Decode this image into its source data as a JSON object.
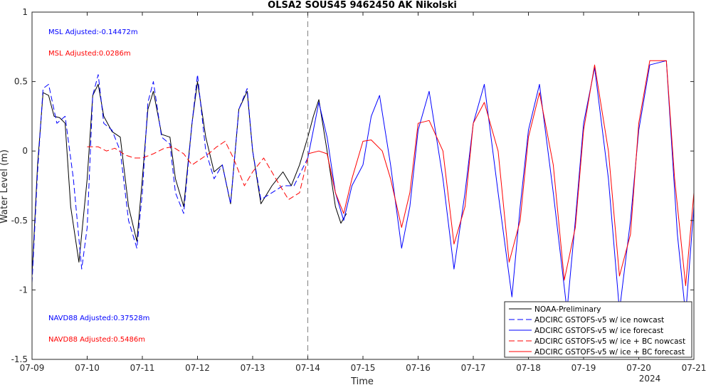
{
  "chart_data": {
    "type": "line",
    "title": "OLSA2 SOUS45 9462450 AK Nikolski",
    "xlabel": "Time",
    "ylabel": "Water Level (m)",
    "x_ticks": [
      "07-09",
      "07-10",
      "07-11",
      "07-12",
      "07-13",
      "07-14",
      "07-15",
      "07-16",
      "07-17",
      "07-18",
      "07-19",
      "07-20",
      "07-21"
    ],
    "x_year_label": "2024",
    "x_range_days": [
      0,
      12
    ],
    "ylim": [
      -1.5,
      1
    ],
    "y_ticks": [
      1,
      0.5,
      0,
      -0.5,
      -1,
      -1.5
    ],
    "y_tick_labels": [
      "1",
      "0.5",
      "0",
      "-0.5",
      "-1",
      "-1.5"
    ],
    "grid": false,
    "forecast_start_day": 5,
    "annotations": {
      "msl_nowcast": "MSL Adjusted:-0.14472m",
      "msl_bc": "MSL Adjusted:0.0286m",
      "navd_nowcast": "NAVD88 Adjusted:0.37528m",
      "navd_bc": "NAVD88 Adjusted:0.5486m"
    },
    "colors": {
      "obs": "#000000",
      "ice": "#0000ff",
      "bc": "#ff0000",
      "vline": "#808080"
    },
    "legend_position": "bottom-right",
    "series": [
      {
        "name": "NOAA-Preliminary",
        "color": "#000000",
        "style": "solid",
        "x": [
          0,
          0.1,
          0.2,
          0.3,
          0.4,
          0.5,
          0.6,
          0.7,
          0.85,
          1.0,
          1.1,
          1.2,
          1.3,
          1.45,
          1.6,
          1.75,
          1.9,
          2.0,
          2.1,
          2.2,
          2.35,
          2.5,
          2.6,
          2.75,
          2.9,
          3.0,
          3.15,
          3.3,
          3.45,
          3.6,
          3.75,
          3.9,
          4.0,
          4.15,
          4.35,
          4.55,
          4.7,
          4.85,
          5.0,
          5.1,
          5.2,
          5.35,
          5.5,
          5.6,
          5.7
        ],
        "y": [
          -0.9,
          -0.1,
          0.42,
          0.4,
          0.25,
          0.24,
          0.2,
          -0.4,
          -0.8,
          -0.2,
          0.4,
          0.48,
          0.25,
          0.14,
          0.1,
          -0.4,
          -0.65,
          -0.2,
          0.3,
          0.43,
          0.12,
          0.1,
          -0.2,
          -0.4,
          0.2,
          0.5,
          0.1,
          -0.15,
          -0.1,
          -0.38,
          0.3,
          0.43,
          0.0,
          -0.38,
          -0.25,
          -0.15,
          -0.25,
          -0.1,
          0.1,
          0.25,
          0.37,
          0.0,
          -0.4,
          -0.52,
          -0.45
        ]
      },
      {
        "name": "ADCIRC GSTOFS-v5  w/ ice nowcast",
        "color": "#0000ff",
        "style": "dashed",
        "x": [
          0,
          0.1,
          0.2,
          0.3,
          0.45,
          0.6,
          0.75,
          0.9,
          1.0,
          1.1,
          1.2,
          1.3,
          1.45,
          1.6,
          1.75,
          1.9,
          2.0,
          2.1,
          2.2,
          2.35,
          2.5,
          2.6,
          2.75,
          2.9,
          3.0,
          3.15,
          3.3,
          3.45,
          3.6,
          3.75,
          3.9,
          4.0,
          4.15,
          4.35,
          4.55,
          4.75,
          5.0
        ],
        "y": [
          -0.95,
          -0.15,
          0.45,
          0.48,
          0.2,
          0.25,
          -0.2,
          -0.85,
          -0.55,
          0.4,
          0.55,
          0.2,
          0.15,
          0.0,
          -0.5,
          -0.7,
          -0.3,
          0.35,
          0.5,
          0.1,
          0.05,
          -0.3,
          -0.45,
          0.2,
          0.55,
          0.0,
          -0.2,
          -0.1,
          -0.38,
          0.3,
          0.45,
          0.0,
          -0.35,
          -0.3,
          -0.25,
          -0.25,
          -0.05
        ]
      },
      {
        "name": "ADCIRC GSTOFS-v5  w/ ice forecast",
        "color": "#0000ff",
        "style": "solid",
        "x": [
          5.0,
          5.1,
          5.2,
          5.35,
          5.5,
          5.65,
          5.8,
          6.0,
          6.15,
          6.3,
          6.5,
          6.7,
          6.85,
          7.0,
          7.2,
          7.45,
          7.65,
          7.85,
          8.0,
          8.2,
          8.45,
          8.7,
          8.85,
          9.0,
          9.2,
          9.45,
          9.7,
          9.85,
          10.0,
          10.2,
          10.45,
          10.65,
          10.85,
          11.0,
          11.2,
          11.5,
          11.7,
          11.85,
          12.0
        ],
        "y": [
          -0.05,
          0.15,
          0.35,
          0.1,
          -0.3,
          -0.5,
          -0.25,
          -0.1,
          0.25,
          0.4,
          -0.1,
          -0.7,
          -0.4,
          0.15,
          0.43,
          -0.2,
          -0.85,
          -0.3,
          0.2,
          0.48,
          -0.3,
          -1.05,
          -0.4,
          0.15,
          0.48,
          -0.3,
          -1.15,
          -0.5,
          0.2,
          0.6,
          -0.2,
          -1.15,
          -0.5,
          0.15,
          0.62,
          0.65,
          -0.6,
          -1.18,
          -0.4
        ]
      },
      {
        "name": "ADCIRC GSTOFS-v5  w/ ice + BC nowcast",
        "color": "#ff0000",
        "style": "dashed",
        "x": [
          1.0,
          1.2,
          1.35,
          1.5,
          1.7,
          1.85,
          2.0,
          2.2,
          2.4,
          2.55,
          2.75,
          2.9,
          3.05,
          3.2,
          3.35,
          3.5,
          3.65,
          3.85,
          4.0,
          4.2,
          4.45,
          4.65,
          4.85,
          5.0
        ],
        "y": [
          0.03,
          0.03,
          0.0,
          0.02,
          -0.03,
          -0.05,
          -0.05,
          -0.02,
          0.02,
          0.03,
          -0.02,
          -0.1,
          -0.06,
          -0.02,
          0.03,
          0.07,
          -0.05,
          -0.25,
          -0.15,
          -0.05,
          -0.22,
          -0.35,
          -0.3,
          -0.05
        ]
      },
      {
        "name": "ADCIRC GSTOFS-v5  w/ ice + BC forecast",
        "color": "#ff0000",
        "style": "solid",
        "x": [
          5.0,
          5.2,
          5.35,
          5.5,
          5.65,
          5.8,
          6.0,
          6.15,
          6.35,
          6.5,
          6.7,
          6.85,
          7.0,
          7.2,
          7.45,
          7.65,
          7.85,
          8.0,
          8.2,
          8.45,
          8.65,
          8.85,
          9.0,
          9.2,
          9.45,
          9.65,
          9.85,
          10.0,
          10.2,
          10.45,
          10.65,
          10.85,
          11.0,
          11.2,
          11.5,
          11.65,
          11.85,
          12.0
        ],
        "y": [
          -0.02,
          0.0,
          -0.02,
          -0.3,
          -0.45,
          -0.2,
          0.07,
          0.08,
          0.0,
          -0.2,
          -0.55,
          -0.3,
          0.2,
          0.22,
          0.0,
          -0.67,
          -0.4,
          0.2,
          0.35,
          0.0,
          -0.8,
          -0.5,
          0.1,
          0.42,
          -0.1,
          -0.93,
          -0.55,
          0.15,
          0.62,
          0.0,
          -0.9,
          -0.6,
          0.2,
          0.65,
          0.65,
          -0.2,
          -0.97,
          -0.3
        ]
      }
    ]
  }
}
